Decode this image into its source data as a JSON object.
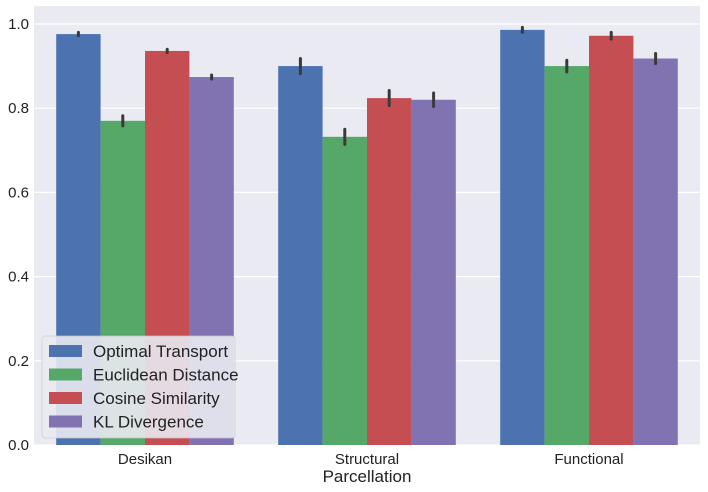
{
  "chart_data": {
    "type": "bar",
    "categories": [
      "Desikan",
      "Structural",
      "Functional"
    ],
    "xlabel": "Parcellation",
    "ylabel": "",
    "ylim": [
      0,
      1.05
    ],
    "yticks": [
      "0.0",
      "0.2",
      "0.4",
      "0.6",
      "0.8",
      "1.0"
    ],
    "grid": true,
    "legend_position": "lower-left",
    "series": [
      {
        "name": "Optimal Transport",
        "color": "#4c72b0",
        "values": [
          0.976,
          0.9,
          0.986
        ],
        "err": [
          0.004,
          0.018,
          0.006
        ]
      },
      {
        "name": "Euclidean Distance",
        "color": "#55a868",
        "values": [
          0.77,
          0.732,
          0.9
        ],
        "err": [
          0.012,
          0.018,
          0.014
        ]
      },
      {
        "name": "Cosine Similarity",
        "color": "#c44e52",
        "values": [
          0.936,
          0.824,
          0.972
        ],
        "err": [
          0.004,
          0.018,
          0.008
        ]
      },
      {
        "name": "KL Divergence",
        "color": "#8172b2",
        "values": [
          0.874,
          0.82,
          0.918
        ],
        "err": [
          0.005,
          0.016,
          0.012
        ]
      }
    ]
  }
}
